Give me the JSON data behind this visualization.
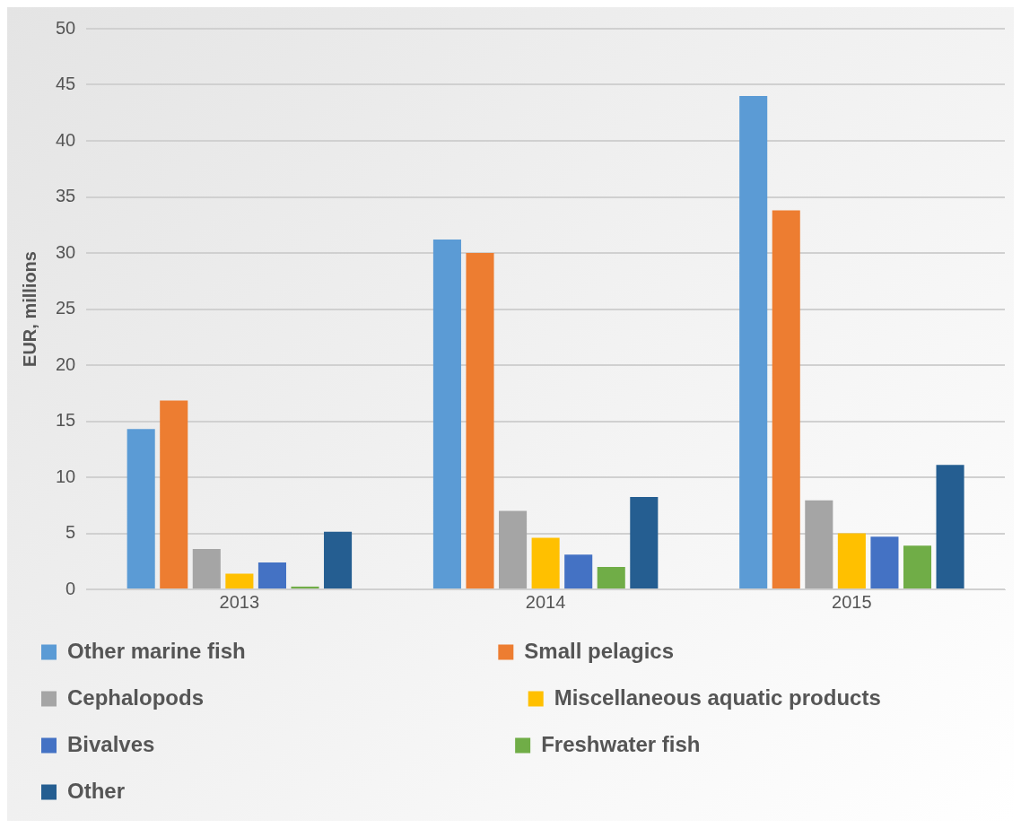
{
  "chart_data": {
    "type": "bar",
    "ylabel": "EUR, millions",
    "categories": [
      "2013",
      "2014",
      "2015"
    ],
    "series": [
      {
        "name": "Other marine fish",
        "color": "#5b9bd5",
        "values": [
          14.3,
          31.2,
          44.0
        ]
      },
      {
        "name": "Small pelagics",
        "color": "#ed7d31",
        "values": [
          16.85,
          30.0,
          33.8
        ]
      },
      {
        "name": "Cephalopods",
        "color": "#a5a5a5",
        "values": [
          3.6,
          7.0,
          7.95
        ]
      },
      {
        "name": "Miscellaneous aquatic products",
        "color": "#ffc000",
        "values": [
          1.4,
          4.6,
          5.0
        ]
      },
      {
        "name": "Bivalves",
        "color": "#4472c4",
        "values": [
          2.4,
          3.1,
          4.7
        ]
      },
      {
        "name": "Freshwater fish",
        "color": "#70ad47",
        "values": [
          0.25,
          2.0,
          3.9
        ]
      },
      {
        "name": "Other",
        "color": "#255e91",
        "values": [
          5.15,
          8.25,
          11.1
        ]
      }
    ],
    "ylim": [
      0,
      50
    ],
    "yticks": [
      0,
      5,
      10,
      15,
      20,
      25,
      30,
      35,
      40,
      45,
      50
    ],
    "grid": "y",
    "legend": "bottom"
  }
}
